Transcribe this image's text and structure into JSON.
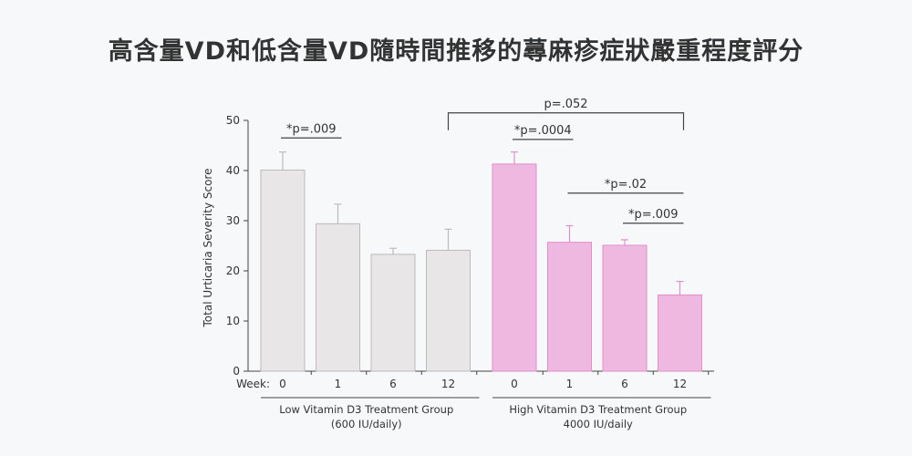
{
  "page": {
    "title": "高含量VD和低含量VD隨時間推移的蕁麻疹症狀嚴重程度評分"
  },
  "chart_data": {
    "type": "bar",
    "title": "高含量VD和低含量VD隨時間推移的蕁麻疹症狀嚴重程度評分",
    "ylabel": "Total Urticaria Severity Score",
    "xlabel": "Week:",
    "ylim": [
      0,
      50
    ],
    "yticks": [
      0,
      10,
      20,
      30,
      40,
      50
    ],
    "groups": [
      {
        "label_line1": "Low Vitamin D3 Treatment Group",
        "label_line2": "(600 IU/daily)",
        "color": "#e8e6e6",
        "stroke": "#bdbaba",
        "bars": [
          {
            "week": "0",
            "value": 40.1,
            "error": 3.6
          },
          {
            "week": "1",
            "value": 29.4,
            "error": 3.9
          },
          {
            "week": "6",
            "value": 23.3,
            "error": 1.2
          },
          {
            "week": "12",
            "value": 24.1,
            "error": 4.2
          }
        ]
      },
      {
        "label_line1": "High Vitamin D3 Treatment Group",
        "label_line2": "4000 IU/daily",
        "color": "#eeb8e0",
        "stroke": "#e08fca",
        "bars": [
          {
            "week": "0",
            "value": 41.3,
            "error": 2.4
          },
          {
            "week": "1",
            "value": 25.7,
            "error": 3.3
          },
          {
            "week": "6",
            "value": 25.1,
            "error": 1.1
          },
          {
            "week": "12",
            "value": 15.2,
            "error": 2.7
          }
        ]
      }
    ],
    "annotations": [
      {
        "label": "*p=.009",
        "from": [
          0,
          0
        ],
        "to": [
          0,
          1
        ],
        "y": 46.5
      },
      {
        "label": "p=.052",
        "from": [
          0,
          3
        ],
        "to": [
          1,
          3
        ],
        "y": 51.5,
        "bracket": true
      },
      {
        "label": "*p=.0004",
        "from": [
          1,
          0
        ],
        "to": [
          1,
          1
        ],
        "y": 46.2
      },
      {
        "label": "*p=.02",
        "from": [
          1,
          1
        ],
        "to": [
          1,
          3
        ],
        "y": 35.5
      },
      {
        "label": "*p=.009",
        "from": [
          1,
          2
        ],
        "to": [
          1,
          3
        ],
        "y": 29.5
      }
    ]
  }
}
